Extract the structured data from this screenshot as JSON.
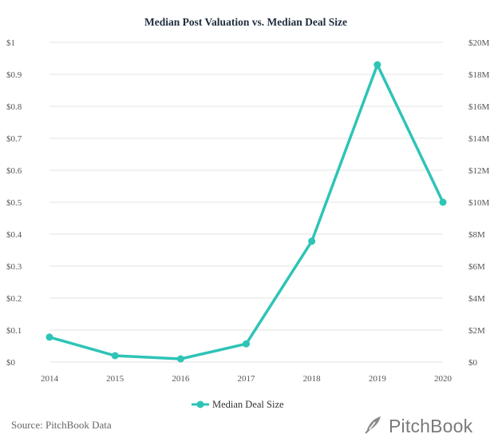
{
  "chart_data": {
    "type": "line",
    "title": "Median Post Valuation vs. Median Deal Size",
    "categories": [
      "2014",
      "2015",
      "2016",
      "2017",
      "2018",
      "2019",
      "2020"
    ],
    "series": [
      {
        "name": "Median Deal Size",
        "axis": "right",
        "color": "#2ec4b6",
        "values": [
          1.56,
          0.4,
          0.2,
          1.14,
          7.56,
          18.6,
          10.0
        ]
      }
    ],
    "y_left": {
      "ticks": [
        "$0",
        "$0.1",
        "$0.2",
        "$0.3",
        "$0.4",
        "$0.5",
        "$0.6",
        "$0.7",
        "$0.8",
        "$0.9",
        "$1"
      ],
      "ylim": [
        0,
        1
      ]
    },
    "y_right": {
      "ticks": [
        "$0",
        "$2M",
        "$4M",
        "$6M",
        "$8M",
        "$10M",
        "$12M",
        "$14M",
        "$16M",
        "$18M",
        "$20M"
      ],
      "ylim": [
        0,
        20
      ],
      "unit": "M"
    },
    "grid": true,
    "legend": "bottom-center"
  },
  "footer": {
    "source": "Source: PitchBook Data",
    "brand": "PitchBook"
  },
  "colors": {
    "line": "#2ec4b6",
    "grid": "#e3e3e3",
    "title": "#1f2d3d",
    "brand": "#7a7a7a"
  },
  "icons": {
    "brand_logo": "pitchbook-leaf-icon"
  }
}
